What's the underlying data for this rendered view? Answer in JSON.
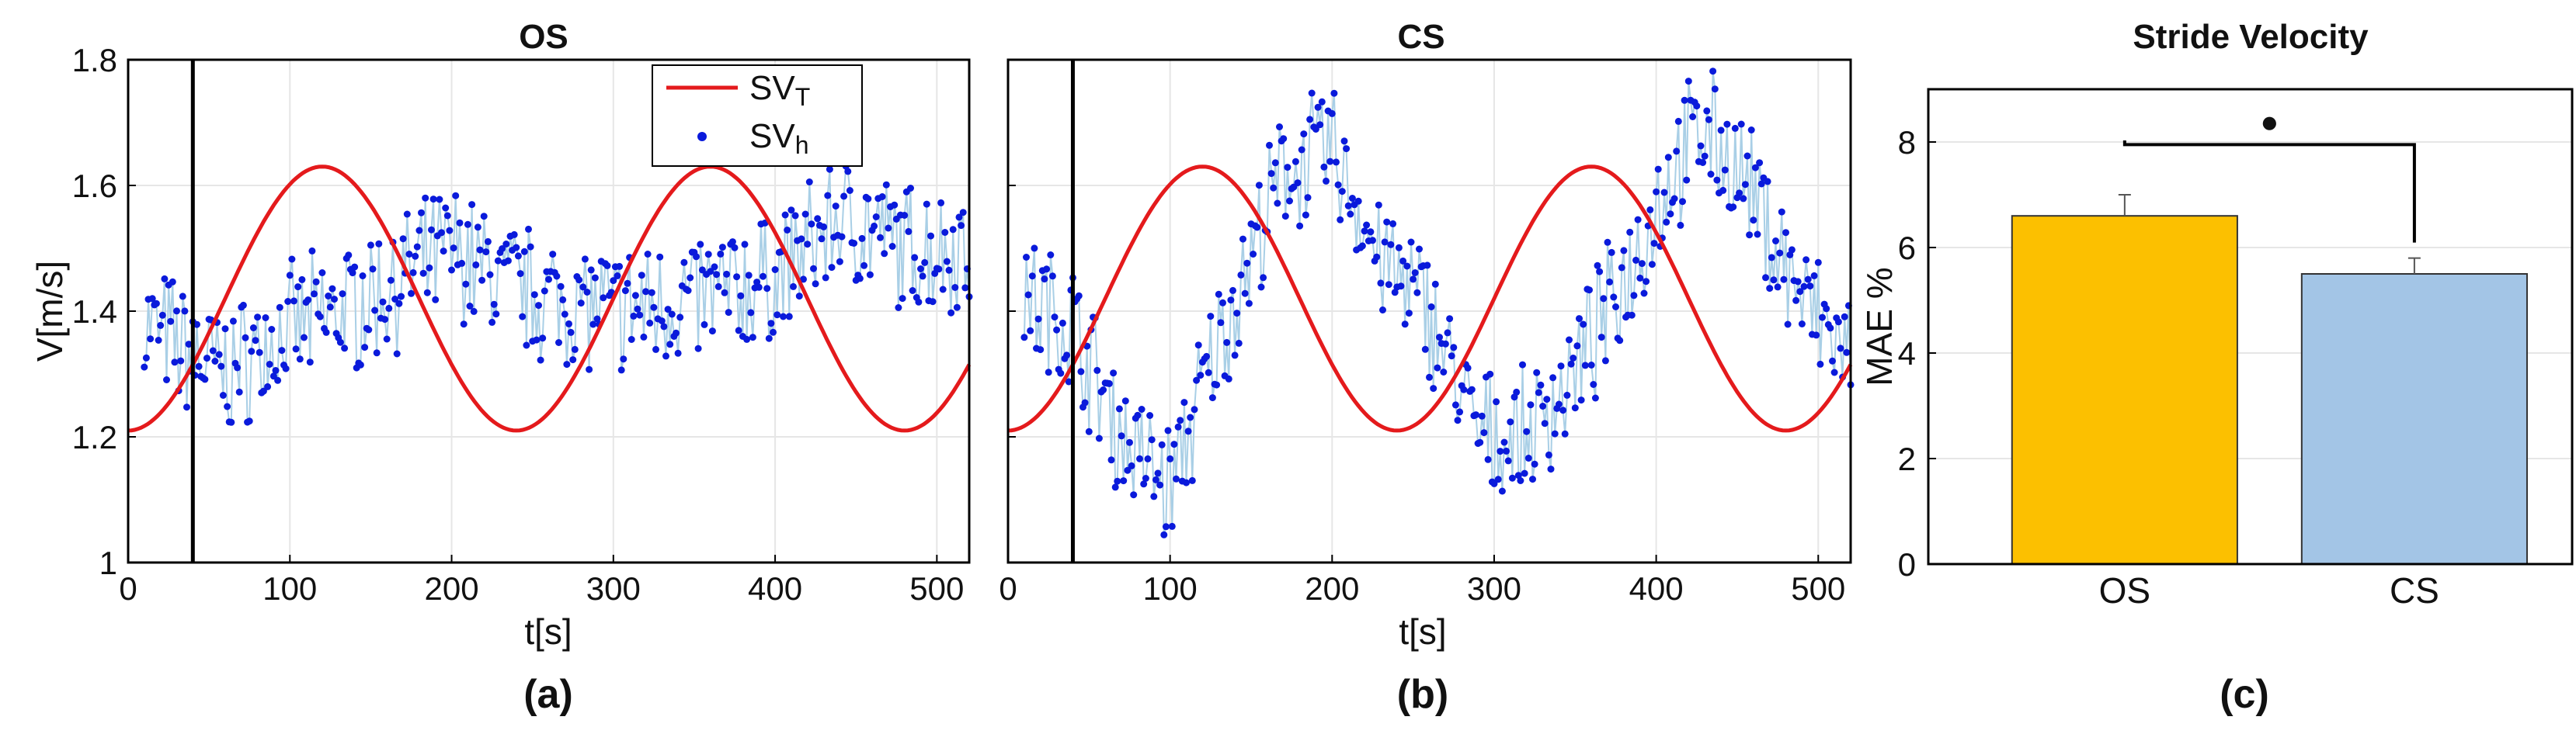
{
  "chart_data": [
    {
      "type": "line",
      "title": "OS",
      "caption": "(a)",
      "xlabel": "t[s]",
      "ylabel": "V[m/s]",
      "xlim": [
        0,
        520
      ],
      "ylim": [
        1,
        1.8
      ],
      "xticks": [
        0,
        100,
        200,
        300,
        400,
        500
      ],
      "yticks": [
        1,
        1.2,
        1.4,
        1.6,
        1.8
      ],
      "ytick_labels": [
        "1",
        "1.2",
        "1.4",
        "1.6",
        "1.8"
      ],
      "vline_x": 40,
      "legend": [
        "SV",
        "SV"
      ],
      "legend_subscripts": [
        "T",
        "h"
      ],
      "reference": {
        "name": "SV_T",
        "mean": 1.42,
        "amplitude": 0.21,
        "period": 240,
        "phase_at": 120
      },
      "measured_trend": [
        [
          10,
          1.38
        ],
        [
          60,
          1.3
        ],
        [
          100,
          1.37
        ],
        [
          150,
          1.42
        ],
        [
          200,
          1.5
        ],
        [
          230,
          1.45
        ],
        [
          260,
          1.42
        ],
        [
          300,
          1.4
        ],
        [
          350,
          1.42
        ],
        [
          400,
          1.45
        ],
        [
          440,
          1.55
        ],
        [
          480,
          1.5
        ],
        [
          520,
          1.5
        ]
      ],
      "measured_noise": 0.09,
      "colors": {
        "reference": "#e41a1c",
        "measured": "#0a1adb",
        "measured_line": "#a9cfe6"
      }
    },
    {
      "type": "line",
      "title": "CS",
      "caption": "(b)",
      "xlabel": "t[s]",
      "ylabel": "",
      "xlim": [
        0,
        520
      ],
      "ylim": [
        1,
        1.8
      ],
      "xticks": [
        0,
        100,
        200,
        300,
        400,
        500
      ],
      "yticks": [
        1,
        1.2,
        1.4,
        1.6,
        1.8
      ],
      "ytick_labels": [],
      "vline_x": 40,
      "reference": {
        "name": "SV_T",
        "mean": 1.42,
        "amplitude": 0.21,
        "period": 240,
        "phase_at": 120
      },
      "measured_trend": [
        [
          10,
          1.42
        ],
        [
          40,
          1.38
        ],
        [
          70,
          1.2
        ],
        [
          100,
          1.12
        ],
        [
          130,
          1.35
        ],
        [
          170,
          1.62
        ],
        [
          200,
          1.66
        ],
        [
          230,
          1.48
        ],
        [
          260,
          1.4
        ],
        [
          290,
          1.2
        ],
        [
          320,
          1.2
        ],
        [
          350,
          1.3
        ],
        [
          380,
          1.45
        ],
        [
          410,
          1.62
        ],
        [
          430,
          1.7
        ],
        [
          460,
          1.58
        ],
        [
          490,
          1.42
        ],
        [
          520,
          1.32
        ]
      ],
      "measured_noise": 0.09,
      "colors": {
        "reference": "#e41a1c",
        "measured": "#0a1adb",
        "measured_line": "#a9cfe6"
      }
    },
    {
      "type": "bar",
      "title": "Stride Velocity",
      "caption": "(c)",
      "xlabel": "",
      "ylabel": "MAE %",
      "categories": [
        "OS",
        "CS"
      ],
      "values": [
        6.6,
        5.5
      ],
      "errors": [
        0.4,
        0.3
      ],
      "ylim": [
        0,
        9
      ],
      "yticks": [
        0,
        2,
        4,
        6,
        8
      ],
      "significance_marker": "●",
      "colors": [
        "#fcc000",
        "#a3c5e6"
      ]
    }
  ]
}
